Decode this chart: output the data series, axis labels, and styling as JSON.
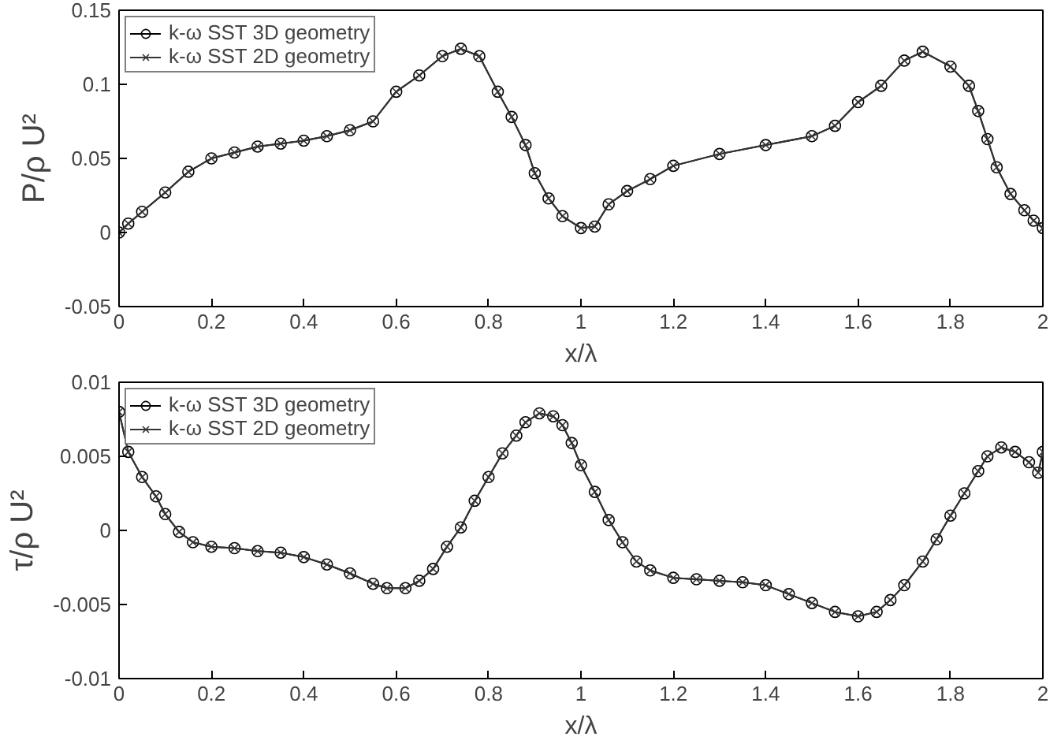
{
  "chart_data": [
    {
      "type": "line",
      "xlabel": "x/λ",
      "ylabel": "P/ρ U²",
      "xlim": [
        0,
        2
      ],
      "ylim": [
        -0.05,
        0.15
      ],
      "xticks": [
        0,
        0.2,
        0.4,
        0.6,
        0.8,
        1,
        1.2,
        1.4,
        1.6,
        1.8,
        2
      ],
      "yticks": [
        -0.05,
        0,
        0.05,
        0.1,
        0.15
      ],
      "grid": false,
      "legend": "top left",
      "x": [
        0,
        0.02,
        0.05,
        0.1,
        0.15,
        0.2,
        0.25,
        0.3,
        0.35,
        0.4,
        0.45,
        0.5,
        0.55,
        0.6,
        0.65,
        0.7,
        0.74,
        0.78,
        0.82,
        0.85,
        0.88,
        0.9,
        0.93,
        0.96,
        1.0,
        1.03,
        1.06,
        1.1,
        1.15,
        1.2,
        1.3,
        1.4,
        1.5,
        1.55,
        1.6,
        1.65,
        1.7,
        1.74,
        1.8,
        1.84,
        1.86,
        1.88,
        1.9,
        1.93,
        1.96,
        1.98,
        2.0
      ],
      "series": [
        {
          "name": "k-ω SST 3D geometry",
          "color": "#000000",
          "marker": "circle",
          "values": [
            0,
            0.006,
            0.014,
            0.027,
            0.041,
            0.05,
            0.054,
            0.058,
            0.06,
            0.062,
            0.065,
            0.069,
            0.075,
            0.095,
            0.106,
            0.119,
            0.124,
            0.119,
            0.095,
            0.078,
            0.059,
            0.04,
            0.023,
            0.011,
            0.003,
            0.004,
            0.019,
            0.028,
            0.036,
            0.045,
            0.053,
            0.059,
            0.065,
            0.072,
            0.088,
            0.099,
            0.116,
            0.122,
            0.112,
            0.099,
            0.082,
            0.063,
            0.044,
            0.026,
            0.015,
            0.008,
            0.003
          ]
        },
        {
          "name": "k-ω SST 2D geometry",
          "color": "#333333",
          "marker": "cross",
          "values": [
            0,
            0.006,
            0.014,
            0.027,
            0.041,
            0.05,
            0.054,
            0.058,
            0.06,
            0.062,
            0.065,
            0.069,
            0.075,
            0.095,
            0.106,
            0.119,
            0.124,
            0.119,
            0.095,
            0.078,
            0.059,
            0.04,
            0.023,
            0.011,
            0.003,
            0.004,
            0.019,
            0.028,
            0.036,
            0.045,
            0.053,
            0.059,
            0.065,
            0.072,
            0.088,
            0.099,
            0.116,
            0.122,
            0.112,
            0.099,
            0.082,
            0.063,
            0.044,
            0.026,
            0.015,
            0.008,
            0.003
          ]
        }
      ]
    },
    {
      "type": "line",
      "xlabel": "x/λ",
      "ylabel": "τ/ρ U²",
      "xlim": [
        0,
        2
      ],
      "ylim": [
        -0.01,
        0.01
      ],
      "xticks": [
        0,
        0.2,
        0.4,
        0.6,
        0.8,
        1,
        1.2,
        1.4,
        1.6,
        1.8,
        2
      ],
      "yticks": [
        -0.01,
        -0.005,
        0,
        0.005,
        0.01
      ],
      "grid": false,
      "legend": "top left",
      "x": [
        0,
        0.02,
        0.05,
        0.08,
        0.1,
        0.13,
        0.16,
        0.2,
        0.25,
        0.3,
        0.35,
        0.4,
        0.45,
        0.5,
        0.55,
        0.58,
        0.62,
        0.65,
        0.68,
        0.71,
        0.74,
        0.77,
        0.8,
        0.83,
        0.86,
        0.88,
        0.91,
        0.94,
        0.96,
        0.98,
        1.0,
        1.03,
        1.06,
        1.09,
        1.12,
        1.15,
        1.2,
        1.25,
        1.3,
        1.35,
        1.4,
        1.45,
        1.5,
        1.55,
        1.6,
        1.64,
        1.67,
        1.7,
        1.74,
        1.77,
        1.8,
        1.83,
        1.86,
        1.88,
        1.91,
        1.94,
        1.97,
        1.99,
        2.0
      ],
      "series": [
        {
          "name": "k-ω SST 3D geometry",
          "color": "#000000",
          "marker": "circle",
          "values": [
            0.008,
            0.0053,
            0.0036,
            0.0023,
            0.0011,
            -0.0001,
            -0.0008,
            -0.0011,
            -0.0012,
            -0.0014,
            -0.0015,
            -0.0018,
            -0.0023,
            -0.0029,
            -0.0036,
            -0.0039,
            -0.0039,
            -0.0034,
            -0.0026,
            -0.0011,
            0.0002,
            0.002,
            0.0036,
            0.0052,
            0.0064,
            0.0073,
            0.0079,
            0.0077,
            0.0071,
            0.0059,
            0.0044,
            0.0026,
            0.0007,
            -0.0008,
            -0.0021,
            -0.0027,
            -0.0032,
            -0.0033,
            -0.0034,
            -0.0035,
            -0.0037,
            -0.0043,
            -0.0049,
            -0.0055,
            -0.0058,
            -0.0055,
            -0.0047,
            -0.0037,
            -0.0021,
            -0.0006,
            0.001,
            0.0025,
            0.004,
            0.005,
            0.0056,
            0.0053,
            0.0046,
            0.0039,
            0.0053
          ]
        },
        {
          "name": "k-ω SST 2D geometry",
          "color": "#333333",
          "marker": "cross",
          "values": [
            0.008,
            0.0053,
            0.0036,
            0.0023,
            0.0011,
            -0.0001,
            -0.0008,
            -0.0011,
            -0.0012,
            -0.0014,
            -0.0015,
            -0.0018,
            -0.0023,
            -0.0029,
            -0.0036,
            -0.0039,
            -0.0039,
            -0.0034,
            -0.0026,
            -0.0011,
            0.0002,
            0.002,
            0.0036,
            0.0052,
            0.0064,
            0.0073,
            0.0079,
            0.0077,
            0.0071,
            0.0059,
            0.0044,
            0.0026,
            0.0007,
            -0.0008,
            -0.0021,
            -0.0027,
            -0.0032,
            -0.0033,
            -0.0034,
            -0.0035,
            -0.0037,
            -0.0043,
            -0.0049,
            -0.0055,
            -0.0058,
            -0.0055,
            -0.0047,
            -0.0037,
            -0.0021,
            -0.0006,
            0.001,
            0.0025,
            0.004,
            0.005,
            0.0056,
            0.0053,
            0.0046,
            0.0039,
            0.0053
          ]
        }
      ]
    }
  ]
}
